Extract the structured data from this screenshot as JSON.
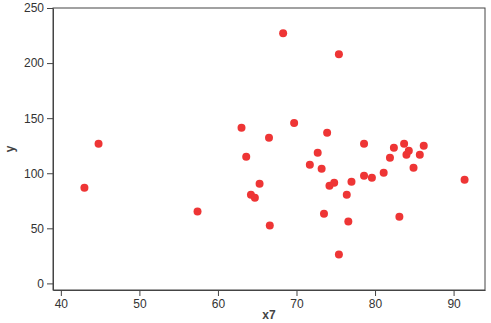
{
  "chart_data": {
    "type": "scatter",
    "x_label": "x7",
    "y_label": "y",
    "color": "#ee3535",
    "x": [
      44.8,
      43.0,
      57.4,
      63.0,
      63.6,
      65.3,
      64.2,
      64.7,
      66.5,
      66.6,
      68.3,
      69.7,
      75.4,
      73.9,
      72.7,
      71.7,
      73.2,
      74.2,
      74.8,
      73.5,
      76.4,
      75.4,
      76.6,
      77.0,
      78.6,
      78.6,
      79.6,
      81.1,
      81.9,
      82.4,
      83.7,
      84.0,
      84.3,
      84.9,
      85.7,
      86.2,
      83.1,
      91.4
    ],
    "values": [
      126.7,
      86.9,
      65.2,
      141.2,
      114.9,
      90.5,
      80.5,
      77.8,
      132.1,
      52.5,
      227.1,
      145.7,
      208.1,
      136.7,
      118.6,
      107.7,
      104.1,
      88.7,
      91.4,
      63.3,
      80.5,
      26.2,
      56.1,
      92.3,
      126.7,
      97.7,
      95.9,
      100.5,
      114.0,
      123.1,
      126.7,
      116.7,
      120.4,
      105.0,
      116.7,
      124.9,
      60.6,
      94.1
    ],
    "xlim": [
      39,
      94
    ],
    "ylim": [
      -6,
      250
    ],
    "xticks": [
      40,
      50,
      60,
      70,
      80,
      90
    ],
    "yticks": [
      0,
      50,
      100,
      150,
      200,
      250
    ],
    "marker": "circle",
    "grid": false
  }
}
